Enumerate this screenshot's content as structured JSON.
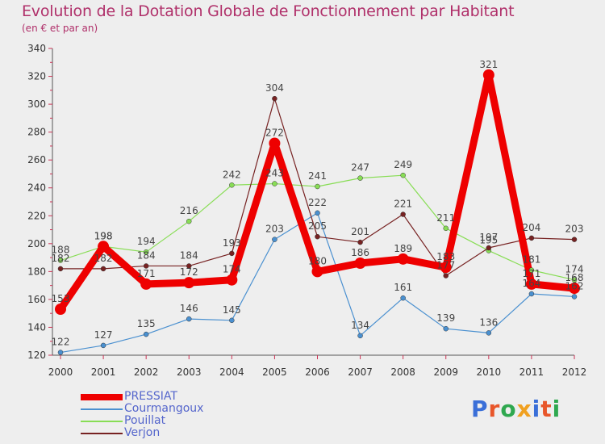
{
  "header": {
    "title": "Evolution de la Dotation Globale de Fonctionnement par Habitant",
    "subtitle": "(en € et par an)"
  },
  "logo": {
    "text": "Proxiti",
    "colors": [
      "#3a6fd8",
      "#e8562a",
      "#2fa84f",
      "#f0a020",
      "#3a6fd8",
      "#e8562a",
      "#2fa84f"
    ]
  },
  "chart_data": {
    "type": "line",
    "title": "Evolution de la Dotation Globale de Fonctionnement par Habitant",
    "subtitle": "(en € et par an)",
    "x": [
      "2000",
      "2001",
      "2002",
      "2003",
      "2004",
      "2005",
      "2006",
      "2007",
      "2008",
      "2009",
      "2010",
      "2011",
      "2012"
    ],
    "ylim": [
      120,
      340
    ],
    "yticks": [
      120,
      140,
      160,
      180,
      200,
      220,
      240,
      260,
      280,
      300,
      320,
      340
    ],
    "grid": false,
    "legend_position": "bottom-left",
    "series": [
      {
        "name": "PRESSIAT",
        "color": "#ee0000",
        "values": [
          153,
          198,
          171,
          172,
          174,
          272,
          180,
          186,
          189,
          183,
          321,
          171,
          168
        ],
        "labels": [
          "153",
          "198",
          "171",
          "172",
          "174",
          "272",
          "180",
          "186",
          "189",
          "183",
          "321",
          "171",
          "168"
        ]
      },
      {
        "name": "Courmangoux",
        "color": "#4a90d0",
        "values": [
          122,
          127,
          135,
          146,
          145,
          203,
          222,
          134,
          161,
          139,
          136,
          164,
          162
        ],
        "labels": [
          "122",
          "127",
          "135",
          "146",
          "145",
          "203",
          "222",
          "134",
          "161",
          "139",
          "136",
          "164",
          "162"
        ]
      },
      {
        "name": "Pouillat",
        "color": "#88dd55",
        "values": [
          188,
          198,
          194,
          216,
          242,
          243,
          241,
          247,
          249,
          211,
          195,
          181,
          174
        ],
        "labels": [
          "188",
          "198",
          "194",
          "216",
          "242",
          "243",
          "241",
          "247",
          "249",
          "211",
          "195",
          "181",
          "174"
        ]
      },
      {
        "name": "Verjon",
        "color": "#772222",
        "values": [
          182,
          182,
          184,
          184,
          193,
          304,
          205,
          201,
          221,
          177,
          197,
          204,
          203
        ],
        "labels": [
          "182",
          "182",
          "184",
          "184",
          "193",
          "304",
          "205",
          "201",
          "221",
          "177",
          "197",
          "204",
          "203"
        ]
      }
    ]
  }
}
